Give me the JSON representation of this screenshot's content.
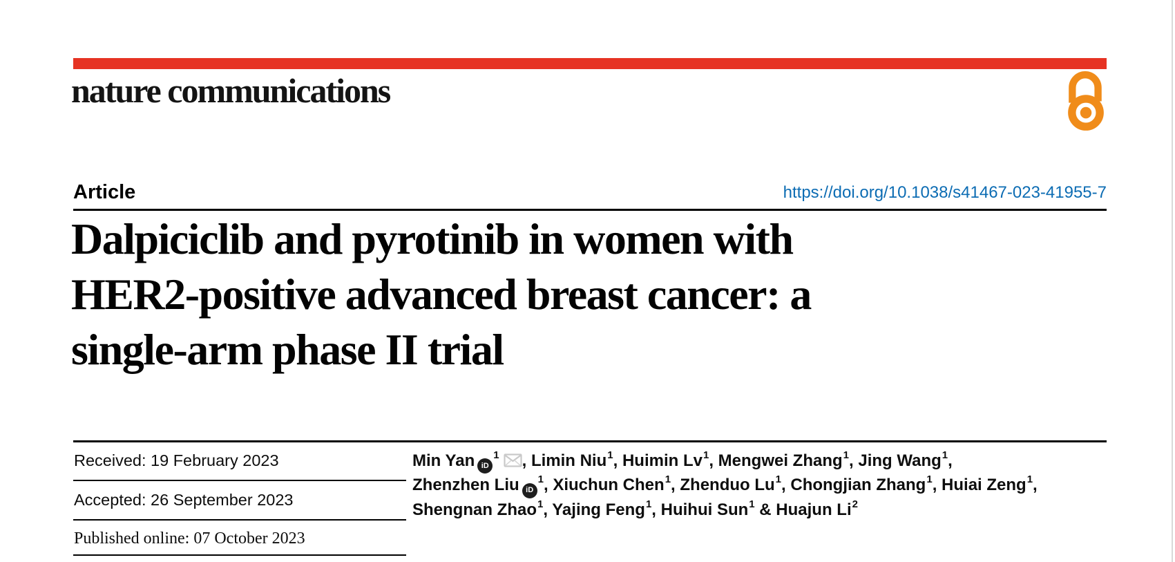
{
  "brand": {
    "name": "nature communications",
    "accent_red": "#e63323",
    "open_access_color": "#f08c1a"
  },
  "article": {
    "type_label": "Article",
    "doi": "https://doi.org/10.1038/s41467-023-41955-7",
    "doi_color": "#0c6cb3",
    "title_lines": [
      "Dalpiciclib and pyrotinib in women with",
      "HER2-positive advanced breast cancer: a",
      "single-arm phase II trial"
    ]
  },
  "history": {
    "rows": [
      {
        "text": "Received: 19 February 2023"
      },
      {
        "text": "Accepted: 26 September 2023"
      },
      {
        "text": "Published online: 07 October 2023"
      }
    ]
  },
  "icons": {
    "orcid_label": "iD",
    "open_access": "open-access-padlock",
    "email": "envelope"
  },
  "authors": {
    "lines": [
      {
        "authors": [
          {
            "name": "Min Yan",
            "sup": "1",
            "orcid": true,
            "email": true
          },
          {
            "name": "Limin Niu",
            "sup": "1"
          },
          {
            "name": "Huimin Lv",
            "sup": "1"
          },
          {
            "name": "Mengwei Zhang",
            "sup": "1"
          },
          {
            "name": "Jing Wang",
            "sup": "1"
          }
        ],
        "trailing": ","
      },
      {
        "authors": [
          {
            "name": "Zhenzhen Liu",
            "sup": "1",
            "orcid": true
          },
          {
            "name": "Xiuchun Chen",
            "sup": "1"
          },
          {
            "name": "Zhenduo Lu",
            "sup": "1"
          },
          {
            "name": "Chongjian Zhang",
            "sup": "1"
          },
          {
            "name": "Huiai Zeng",
            "sup": "1"
          }
        ],
        "trailing": ","
      },
      {
        "authors": [
          {
            "name": "Shengnan Zhao",
            "sup": "1"
          },
          {
            "name": "Yajing Feng",
            "sup": "1"
          },
          {
            "name": "Huihui Sun",
            "sup": "1"
          },
          {
            "name": "Huajun Li",
            "sup": "2"
          }
        ],
        "last_joiner": " & ",
        "trailing": ""
      }
    ]
  }
}
